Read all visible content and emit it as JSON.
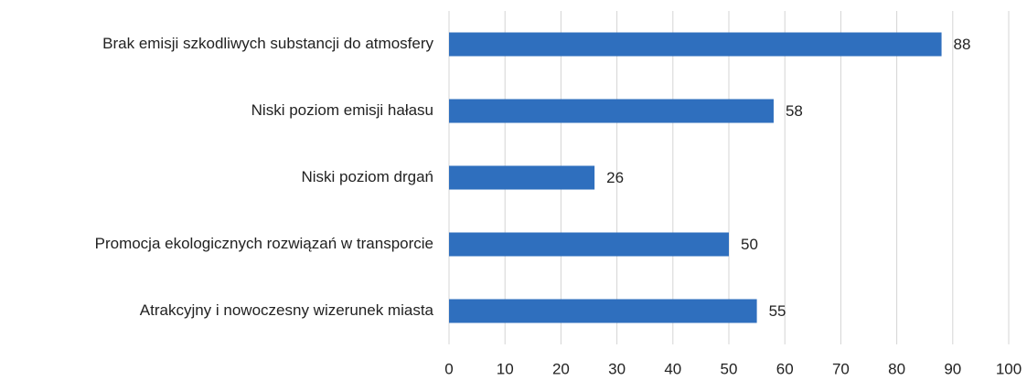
{
  "chart_data": {
    "type": "bar",
    "orientation": "horizontal",
    "categories": [
      "Brak emisji szkodliwych substancji do atmosfery",
      "Niski poziom emisji hałasu",
      "Niski poziom drgań",
      "Promocja ekologicznych rozwiązań w transporcie",
      "Atrakcyjny i nowoczesny wizerunek miasta"
    ],
    "values": [
      88,
      58,
      26,
      50,
      55
    ],
    "color": "#2f6fbe",
    "xlim": [
      0,
      100
    ],
    "xticks": [
      0,
      10,
      20,
      30,
      40,
      50,
      60,
      70,
      80,
      90,
      100
    ],
    "grid": true
  }
}
